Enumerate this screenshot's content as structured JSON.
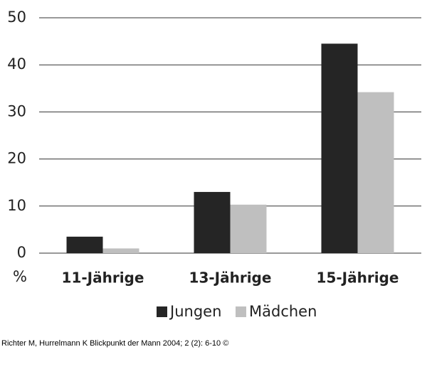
{
  "chart_data": {
    "type": "bar",
    "ylabel": "%",
    "categories": [
      "11-Jährige",
      "13-Jährige",
      "15-Jährige"
    ],
    "series": [
      {
        "name": "Jungen",
        "color": "#252525",
        "values": [
          3.5,
          13,
          44.5
        ]
      },
      {
        "name": "Mädchen",
        "color": "#bfbfbf",
        "values": [
          1,
          10.3,
          34.2
        ]
      }
    ],
    "ylim": [
      0,
      50
    ],
    "yticks": [
      0,
      10,
      20,
      30,
      40,
      50
    ],
    "grid": true,
    "source": "Richter M, Hurrelmann K Blickpunkt der Mann 2004; 2 (2): 6-10 ©"
  }
}
